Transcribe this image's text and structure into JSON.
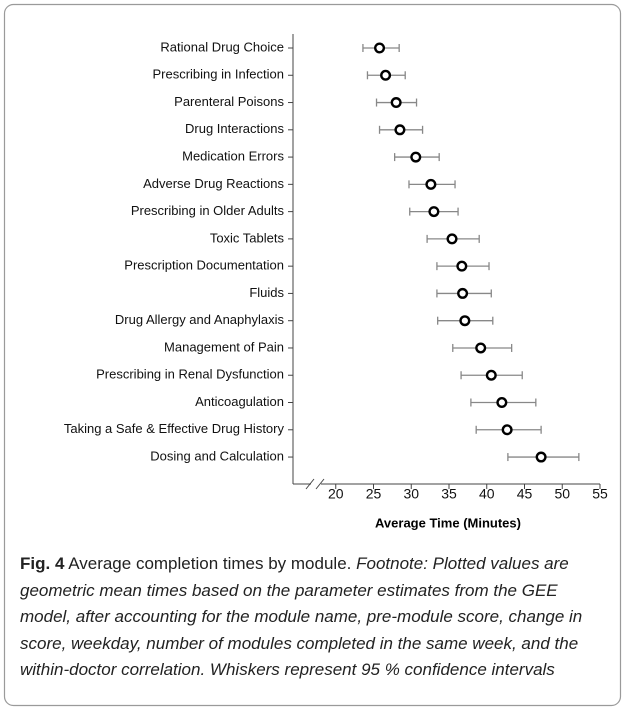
{
  "chart_data": {
    "type": "errorbar",
    "x_label": "Average Time (Minutes)",
    "categories": [
      "Rational Drug Choice",
      "Prescribing in Infection",
      "Parenteral Poisons",
      "Drug Interactions",
      "Medication Errors",
      "Adverse Drug Reactions",
      "Prescribing in Older Adults",
      "Toxic Tablets",
      "Prescription Documentation",
      "Fluids",
      "Drug Allergy and Anaphylaxis",
      "Management of Pain",
      "Prescribing in Renal Dysfunction",
      "Anticoagulation",
      "Taking a Safe & Effective Drug History",
      "Dosing and Calculation"
    ],
    "values": [
      25.8,
      26.6,
      28.0,
      28.5,
      30.6,
      32.6,
      33.0,
      35.4,
      36.7,
      36.8,
      37.1,
      39.2,
      40.6,
      42.0,
      42.7,
      47.2
    ],
    "ci_low": [
      23.6,
      24.2,
      25.4,
      25.8,
      27.8,
      29.7,
      29.8,
      32.1,
      33.4,
      33.4,
      33.5,
      35.5,
      36.6,
      37.9,
      38.6,
      42.8
    ],
    "ci_high": [
      28.4,
      29.2,
      30.7,
      31.5,
      33.7,
      35.8,
      36.2,
      39.0,
      40.3,
      40.6,
      40.8,
      43.3,
      44.7,
      46.5,
      47.2,
      52.2
    ],
    "marker_color": "#000000",
    "whisker_color": "#888888",
    "xlim": [
      15,
      55
    ],
    "xticks": [
      20,
      25,
      30,
      35,
      40,
      45,
      50,
      55
    ],
    "axis_break": true,
    "caption": {
      "label": "Fig. 4",
      "text": "Average completion times by module.",
      "footnote": "Footnote: Plotted values are geometric mean times based on the parameter estimates from the GEE model, after accounting for the module name, pre-module score, change in score, weekday, number of modules completed in the same week, and the within-doctor correlation. Whiskers represent 95 % confidence intervals"
    }
  }
}
